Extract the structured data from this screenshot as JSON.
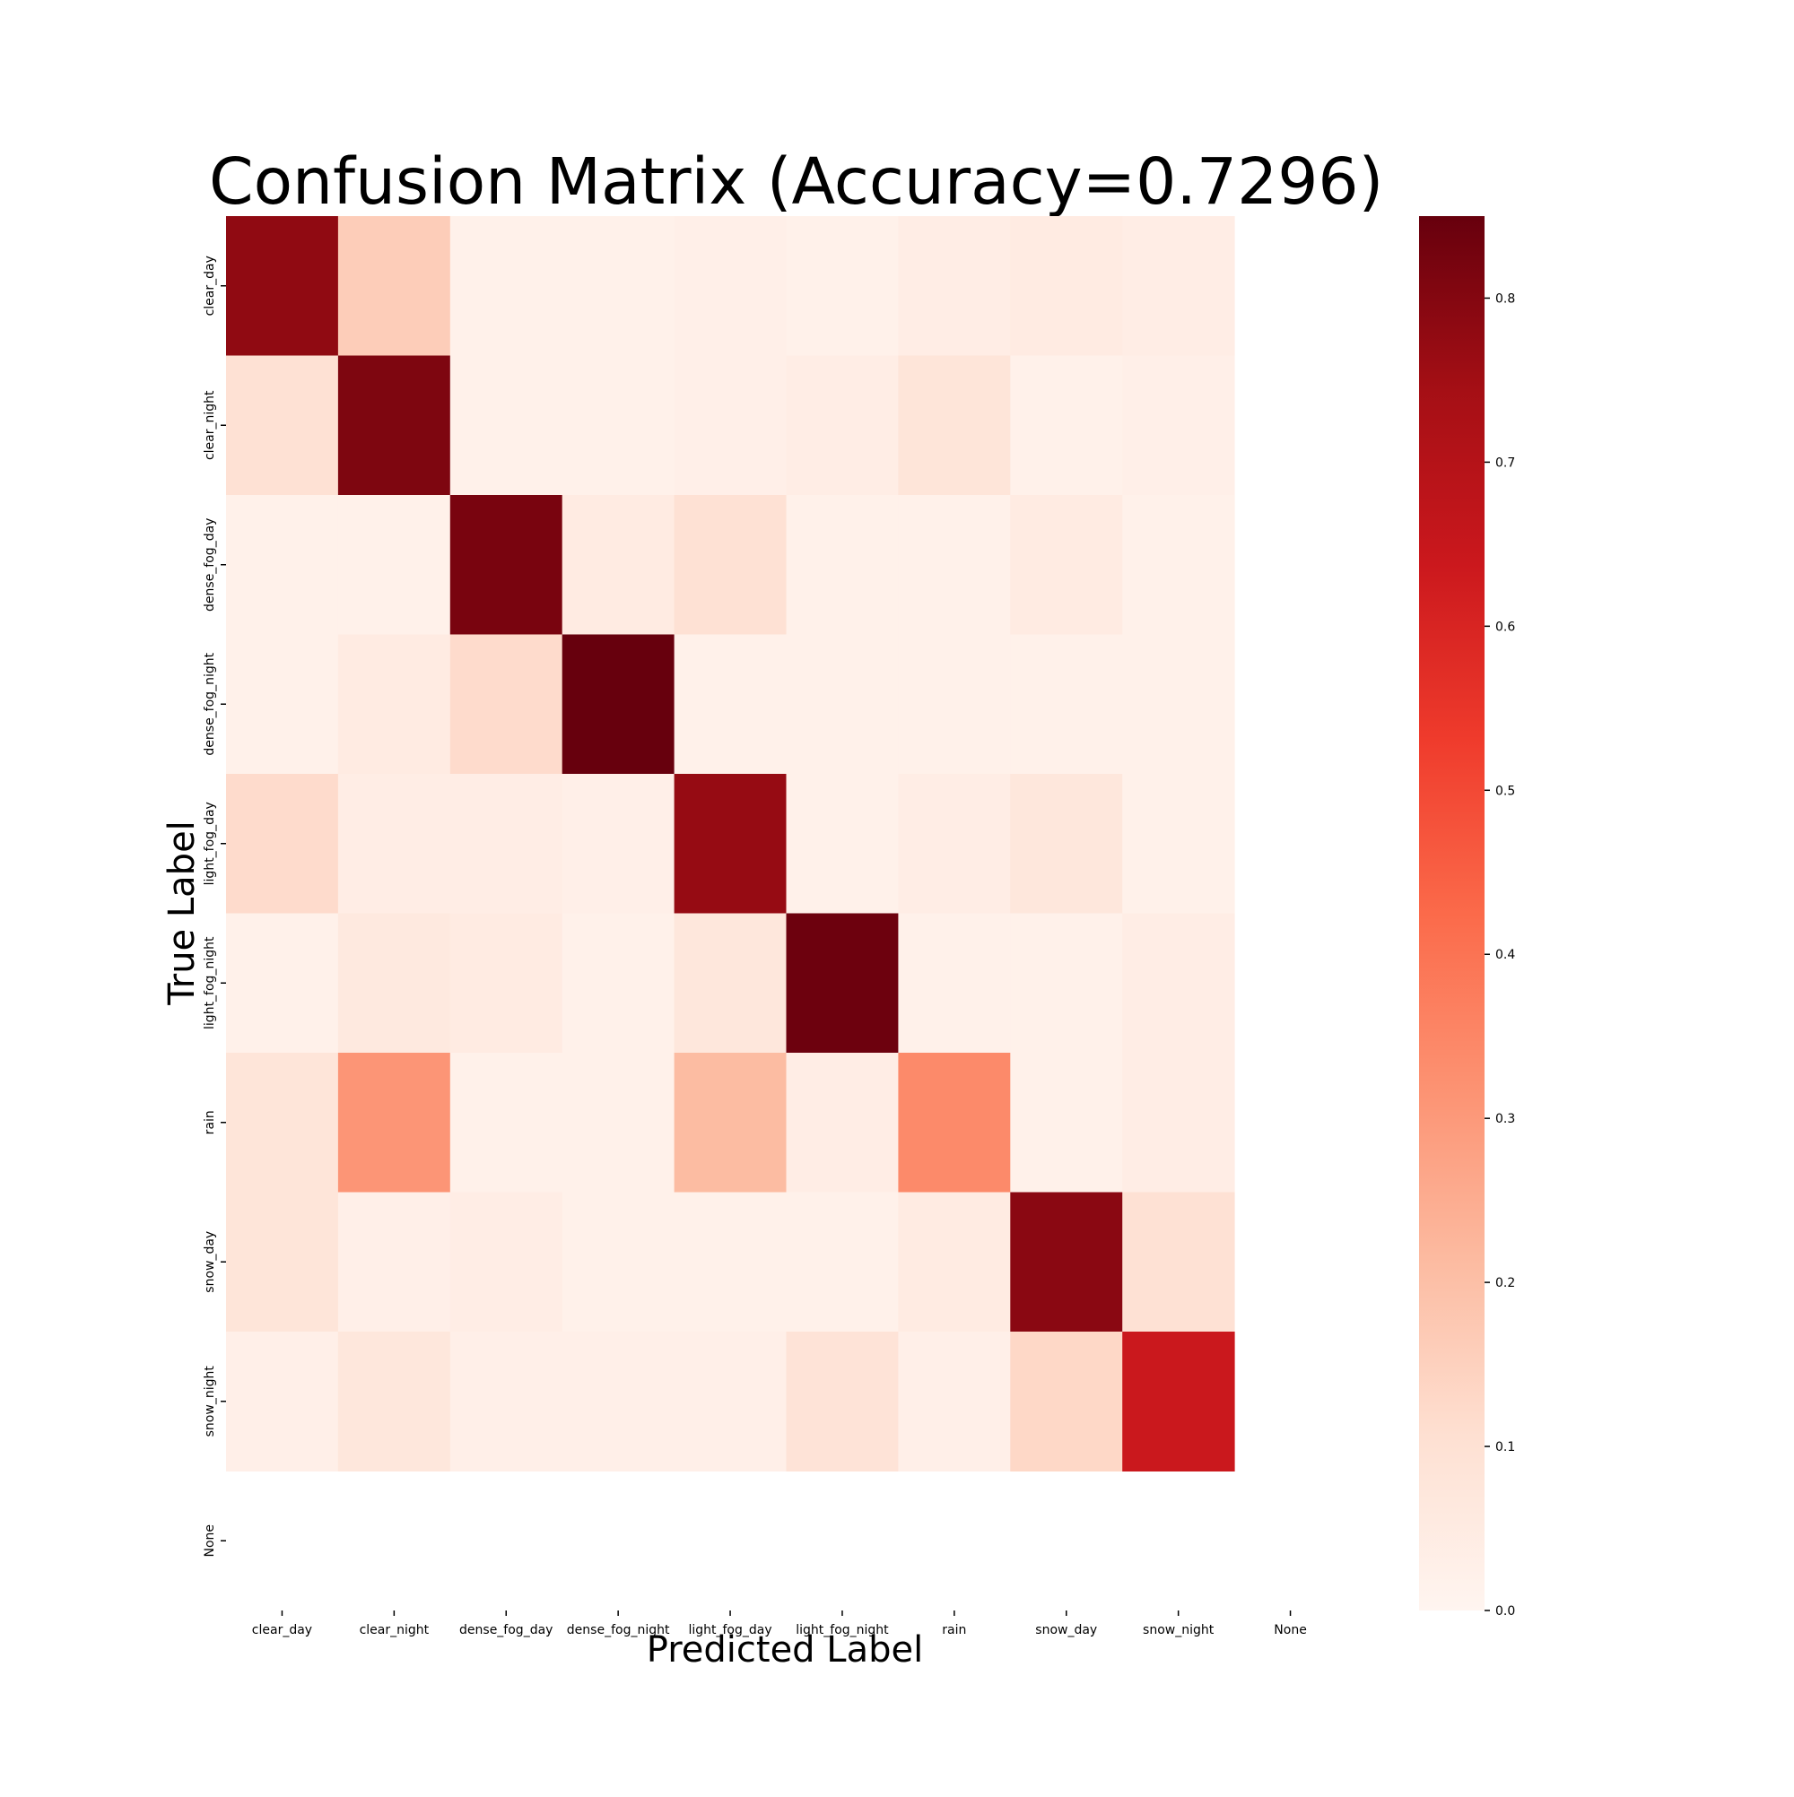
{
  "chart_data": {
    "type": "heatmap",
    "title": "Confusion Matrix (Accuracy=0.7296)",
    "xlabel": "Predicted Label",
    "ylabel": "True Label",
    "x_categories": [
      "clear_day",
      "clear_night",
      "dense_fog_day",
      "dense_fog_night",
      "light_fog_day",
      "light_fog_night",
      "rain",
      "snow_day",
      "snow_night",
      "None"
    ],
    "y_categories": [
      "clear_day",
      "clear_night",
      "dense_fog_day",
      "dense_fog_night",
      "light_fog_day",
      "light_fog_night",
      "rain",
      "snow_day",
      "snow_night",
      "None"
    ],
    "values": [
      [
        0.78,
        0.16,
        0.02,
        0.02,
        0.03,
        0.02,
        0.04,
        0.05,
        0.04,
        null
      ],
      [
        0.1,
        0.81,
        0.02,
        0.02,
        0.03,
        0.04,
        0.08,
        0.02,
        0.03,
        null
      ],
      [
        0.02,
        0.02,
        0.82,
        0.05,
        0.1,
        0.02,
        0.02,
        0.05,
        0.02,
        null
      ],
      [
        0.02,
        0.05,
        0.12,
        0.85,
        0.02,
        0.02,
        0.02,
        0.02,
        0.02,
        null
      ],
      [
        0.12,
        0.04,
        0.04,
        0.03,
        0.77,
        0.02,
        0.04,
        0.07,
        0.02,
        null
      ],
      [
        0.02,
        0.06,
        0.05,
        0.02,
        0.07,
        0.84,
        0.02,
        0.02,
        0.04,
        null
      ],
      [
        0.08,
        0.31,
        0.02,
        0.02,
        0.21,
        0.04,
        0.34,
        0.02,
        0.04,
        null
      ],
      [
        0.08,
        0.03,
        0.04,
        0.02,
        0.02,
        0.02,
        0.05,
        0.79,
        0.1,
        null
      ],
      [
        0.03,
        0.07,
        0.03,
        0.03,
        0.03,
        0.09,
        0.03,
        0.13,
        0.64,
        null
      ],
      [
        null,
        null,
        null,
        null,
        null,
        null,
        null,
        null,
        null,
        null
      ]
    ],
    "colorbar": {
      "min": 0.0,
      "max": 0.85,
      "ticks": [
        0.0,
        0.1,
        0.2,
        0.3,
        0.4,
        0.5,
        0.6,
        0.7,
        0.8
      ],
      "tick_labels": [
        "0.0",
        "0.1",
        "0.2",
        "0.3",
        "0.4",
        "0.5",
        "0.6",
        "0.7",
        "0.8"
      ],
      "colormap": [
        "#fff5f0",
        "#fee0d2",
        "#fcbba1",
        "#fc9272",
        "#fb6a4a",
        "#ef3b2c",
        "#cb181d",
        "#a50f15",
        "#67000d"
      ]
    },
    "grid": false,
    "legend": "none"
  }
}
